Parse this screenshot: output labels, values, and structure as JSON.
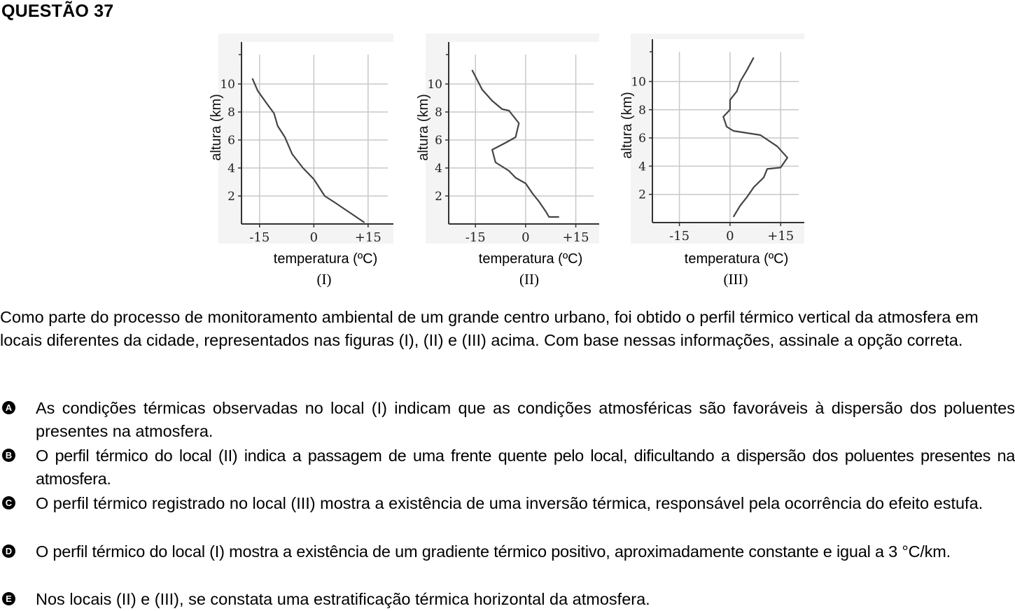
{
  "question": {
    "title": "QUESTÃO 37",
    "stem": "Como parte do processo de monitoramento ambiental de um grande centro urbano, foi obtido o perfil térmico vertical da atmosfera em locais diferentes da cidade, representados nas figuras (I), (II) e (III) acima. Com base nessas informações, assinale a opção correta.",
    "options": [
      {
        "letter": "A",
        "text": "As condições térmicas observadas no local (I) indicam que as condições atmosféricas são favoráveis à dispersão dos poluentes presentes na atmosfera."
      },
      {
        "letter": "B",
        "text": "O perfil térmico do local (II) indica a passagem de uma frente quente pelo local, dificultando a dispersão dos poluentes presentes na atmosfera."
      },
      {
        "letter": "C",
        "text": "O perfil térmico registrado no local (III) mostra a existência de uma inversão térmica, responsável pela ocorrência do efeito estufa."
      },
      {
        "letter": "D",
        "text": "O perfil térmico do local (I) mostra a existência de um gradiente térmico positivo, aproximadamente constante e igual a 3 °C/km."
      },
      {
        "letter": "E",
        "text": "Nos locais (II) e (III), se constata uma estratificação térmica horizontal da atmosfera."
      }
    ]
  },
  "chart_data": [
    {
      "type": "line",
      "label": "(I)",
      "xlabel": "temperatura (ºC)",
      "ylabel": "altura (km)",
      "xticks": [
        "-15",
        "0",
        "+15"
      ],
      "yticks": [
        "2",
        "4",
        "6",
        "8",
        "10"
      ],
      "xlim": [
        -20,
        22
      ],
      "ylim": [
        0,
        13
      ],
      "grid": true,
      "points": [
        [
          -17,
          10.4
        ],
        [
          -15.5,
          9.5
        ],
        [
          -13,
          8.6
        ],
        [
          -11,
          7.9
        ],
        [
          -10,
          7.0
        ],
        [
          -8,
          6.2
        ],
        [
          -6,
          5.0
        ],
        [
          -3,
          4.0
        ],
        [
          0,
          3.2
        ],
        [
          1,
          2.8
        ],
        [
          3,
          2.0
        ],
        [
          6,
          1.5
        ],
        [
          10,
          0.8
        ],
        [
          14,
          0.1
        ]
      ]
    },
    {
      "type": "line",
      "label": "(II)",
      "xlabel": "temperatura (ºC)",
      "ylabel": "altura (km)",
      "xticks": [
        "-15",
        "0",
        "+15"
      ],
      "yticks": [
        "2",
        "4",
        "6",
        "8",
        "10"
      ],
      "xlim": [
        -23,
        22
      ],
      "ylim": [
        0,
        13
      ],
      "grid": true,
      "points": [
        [
          -16,
          11
        ],
        [
          -13,
          9.6
        ],
        [
          -10,
          8.8
        ],
        [
          -7,
          8.2
        ],
        [
          -5,
          8.1
        ],
        [
          -2,
          7.2
        ],
        [
          -3,
          6.2
        ],
        [
          -6,
          5.8
        ],
        [
          -10,
          5.3
        ],
        [
          -9,
          4.4
        ],
        [
          -5,
          3.8
        ],
        [
          -3,
          3.3
        ],
        [
          0,
          2.9
        ],
        [
          2,
          2.2
        ],
        [
          4,
          1.6
        ],
        [
          6,
          0.9
        ],
        [
          7,
          0.5
        ],
        [
          10,
          0.5
        ]
      ]
    },
    {
      "type": "line",
      "label": "(III)",
      "xlabel": "temperatura (ºC)",
      "ylabel": "altura (km)",
      "xticks": [
        "-15",
        "0",
        "+15"
      ],
      "yticks": [
        "2",
        "4",
        "6",
        "8",
        "10"
      ],
      "xlim": [
        -23,
        22
      ],
      "ylim": [
        0,
        13
      ],
      "grid": true,
      "points": [
        [
          7,
          11.7
        ],
        [
          5,
          10.8
        ],
        [
          3,
          10.0
        ],
        [
          2,
          9.3
        ],
        [
          0,
          8.7
        ],
        [
          0,
          8.0
        ],
        [
          -2,
          7.5
        ],
        [
          -1,
          6.8
        ],
        [
          1,
          6.5
        ],
        [
          9,
          6.2
        ],
        [
          14,
          5.4
        ],
        [
          17,
          4.6
        ],
        [
          15,
          3.9
        ],
        [
          11,
          3.8
        ],
        [
          10,
          3.2
        ],
        [
          7,
          2.5
        ],
        [
          5,
          1.8
        ],
        [
          3,
          1.2
        ],
        [
          1,
          0.4
        ]
      ]
    }
  ]
}
